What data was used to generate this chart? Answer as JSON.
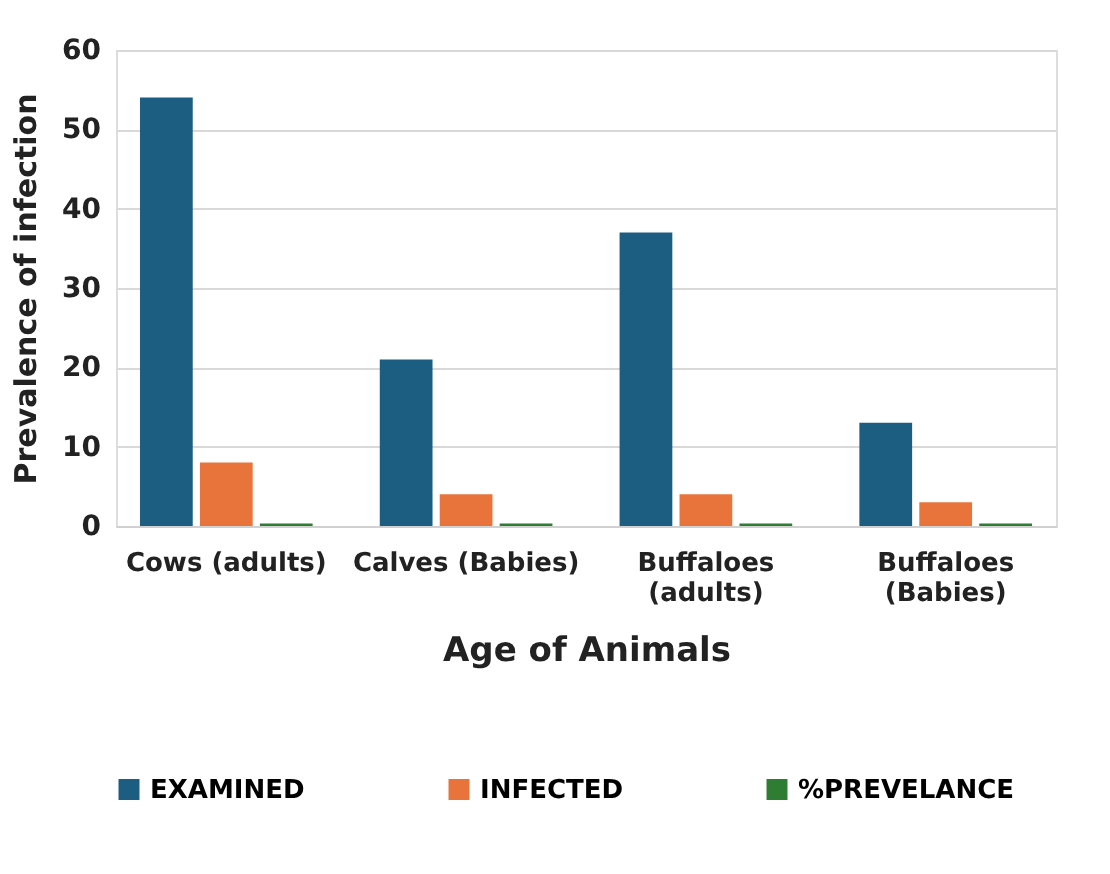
{
  "chart_data": {
    "type": "bar",
    "xlabel": "Age of Animals",
    "ylabel": "Prevalence of infection",
    "categories": [
      "Cows (adults)",
      "Calves (Babies)",
      "Buffaloes (adults)",
      "Buffaloes (Babies)"
    ],
    "series": [
      {
        "name": "EXAMINED",
        "color": "#1b5e82",
        "values": [
          54,
          21,
          37,
          13
        ]
      },
      {
        "name": "INFECTED",
        "color": "#e8743b",
        "values": [
          8,
          4,
          4,
          3
        ]
      },
      {
        "name": "%PREVELANCE",
        "color": "#2e7d32",
        "values": [
          0.3,
          0.3,
          0.3,
          0.3
        ]
      }
    ],
    "ylim": [
      0,
      60
    ],
    "yticks": [
      0,
      10,
      20,
      30,
      40,
      50,
      60
    ],
    "grid": "y",
    "legend": "bottom"
  }
}
